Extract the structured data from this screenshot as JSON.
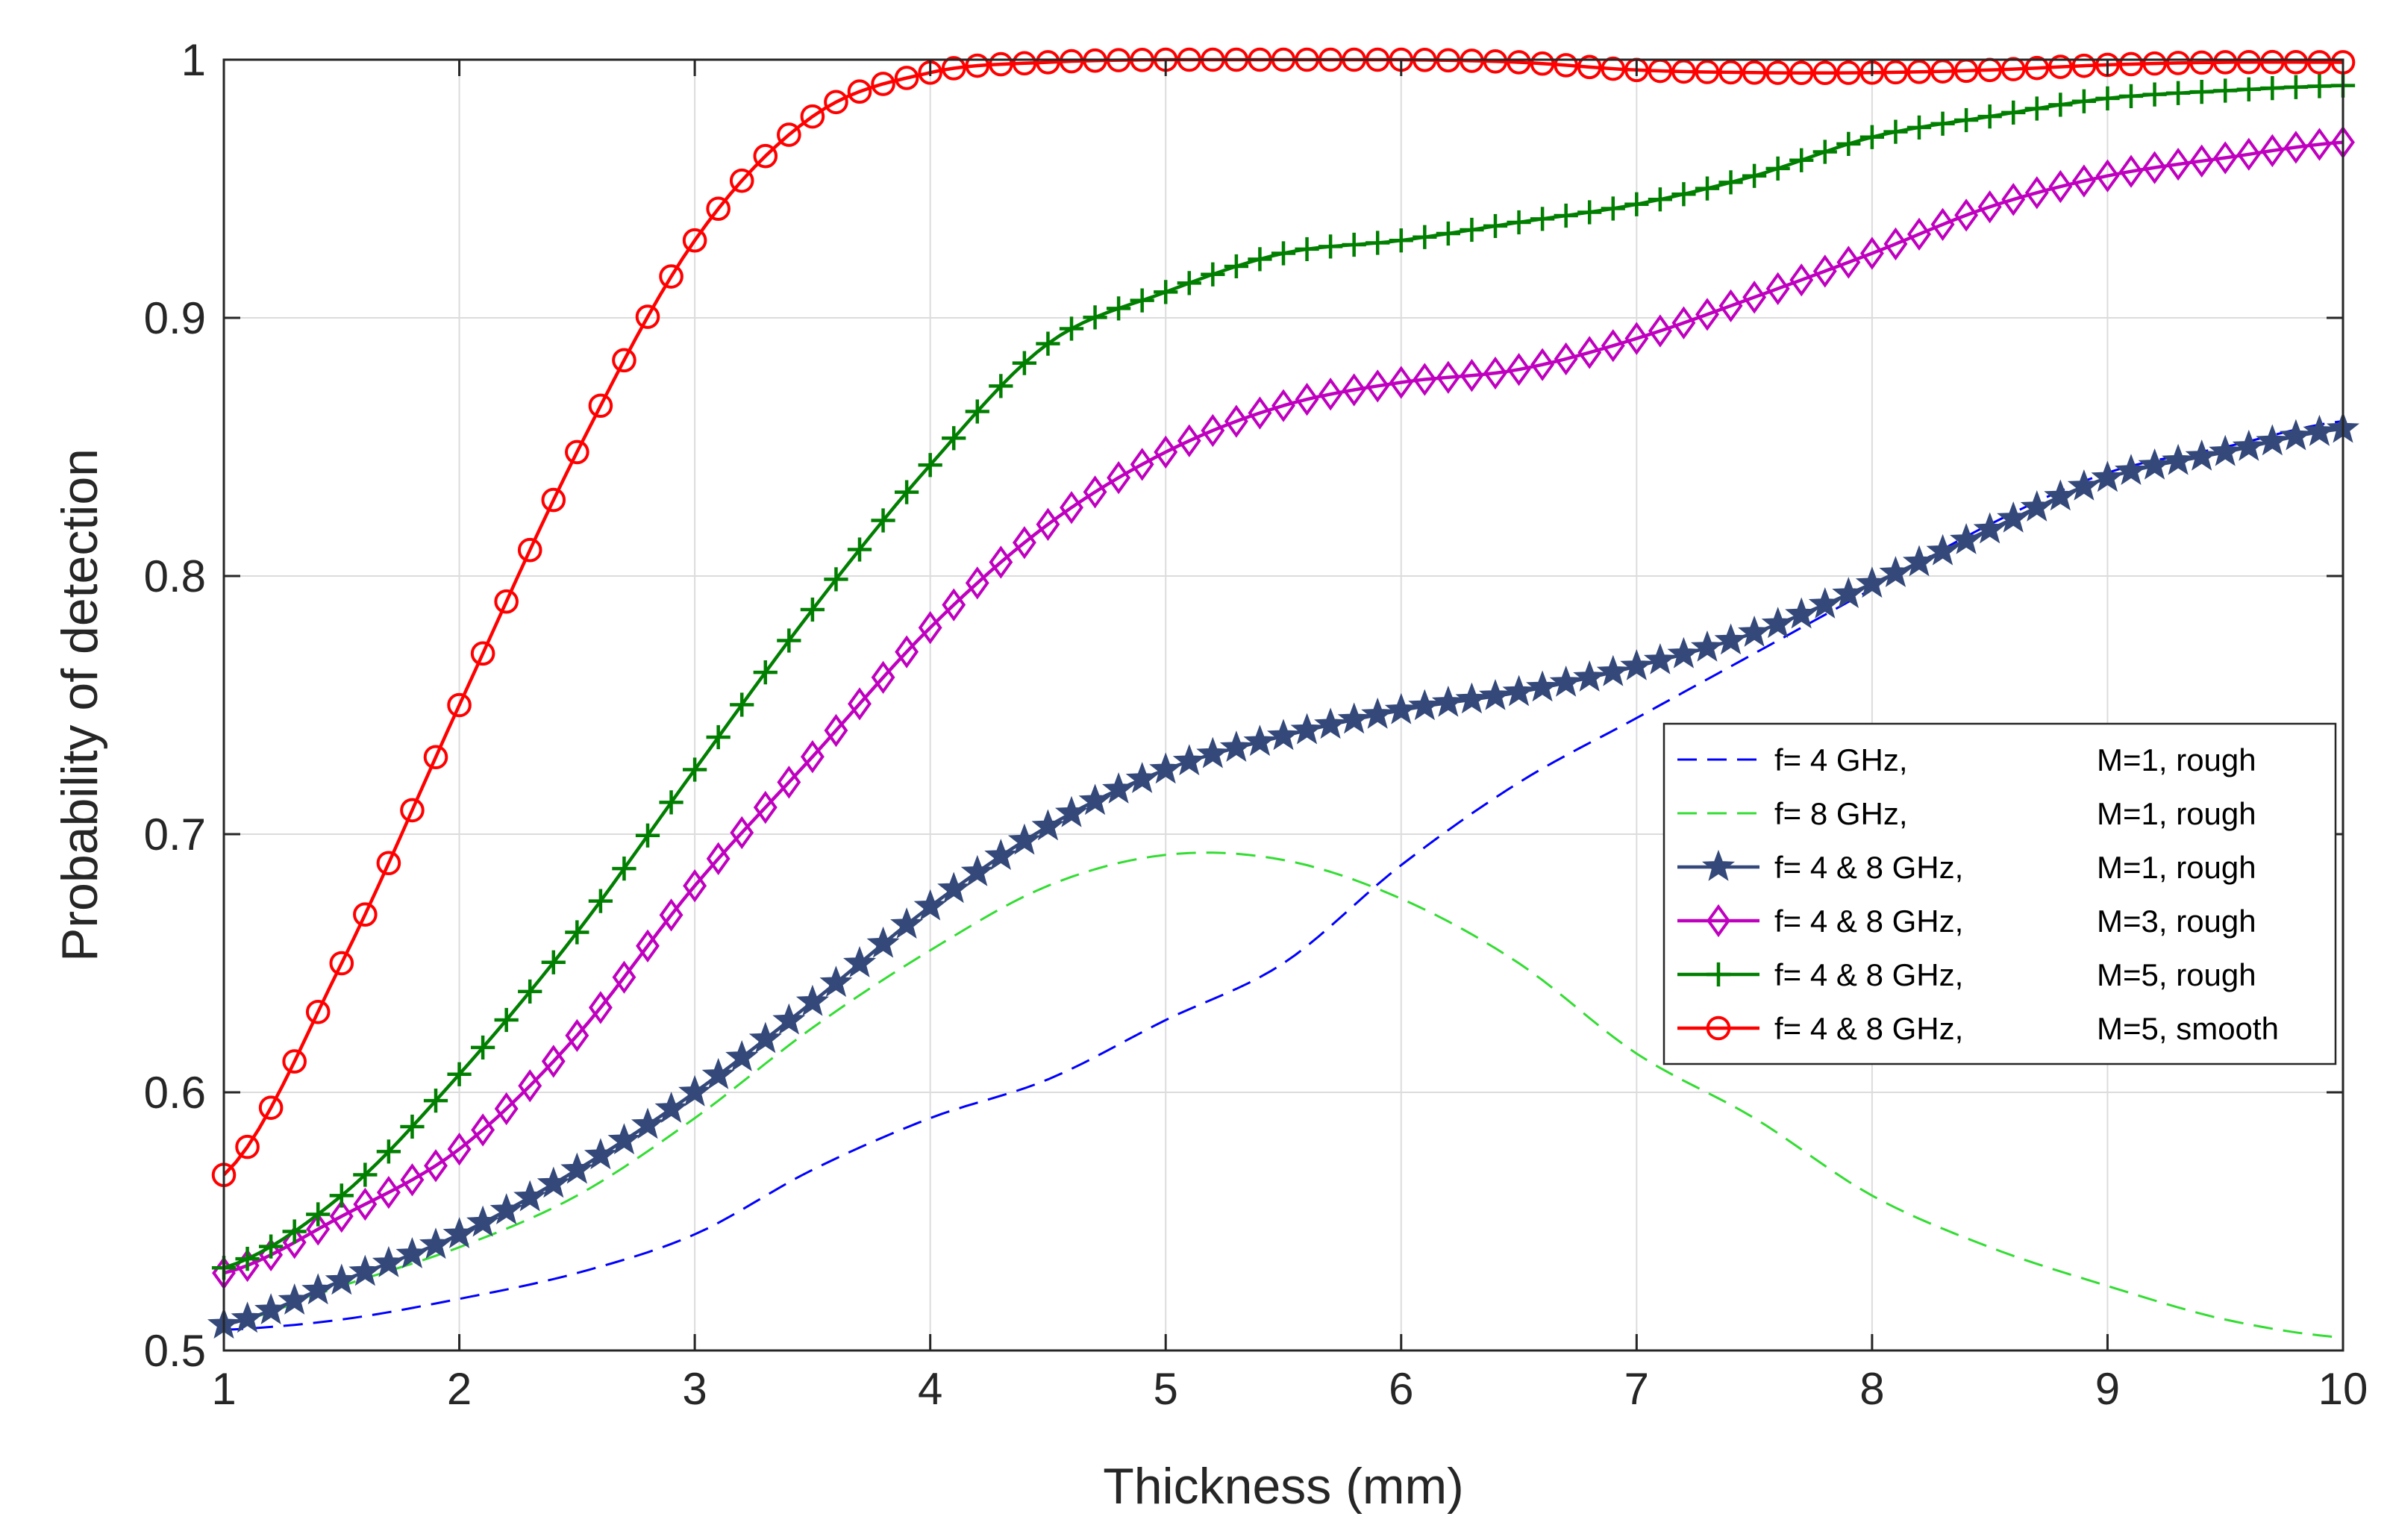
{
  "chart_data": {
    "type": "line",
    "title": "",
    "xlabel": "Thickness (mm)",
    "ylabel": "Probability of detection",
    "xlim": [
      1,
      10
    ],
    "ylim": [
      0.5,
      1
    ],
    "xticks": [
      "1",
      "2",
      "3",
      "4",
      "5",
      "6",
      "7",
      "8",
      "9",
      "10"
    ],
    "yticks": [
      "0.5",
      "0.6",
      "0.7",
      "0.8",
      "0.9",
      "1"
    ],
    "grid": true,
    "legend_position": "lower-right",
    "series": [
      {
        "name": "f= 4 GHz, M=1, rough",
        "legend_freq": "f= 4 GHz,",
        "legend_cond": "M=1, rough",
        "color": "#0000ff",
        "style": "dashed",
        "marker": "none",
        "x": [
          1,
          1.5,
          2,
          2.5,
          3,
          3.5,
          4,
          4.5,
          5,
          5.5,
          6,
          6.5,
          7,
          7.5,
          8,
          8.5,
          9,
          9.5,
          10
        ],
        "y": [
          0.508,
          0.512,
          0.52,
          0.53,
          0.545,
          0.57,
          0.59,
          0.605,
          0.628,
          0.65,
          0.688,
          0.72,
          0.745,
          0.77,
          0.795,
          0.82,
          0.84,
          0.85,
          0.86
        ]
      },
      {
        "name": "f= 8 GHz, M=1, rough",
        "legend_freq": "f= 8 GHz,",
        "legend_cond": "M=1, rough",
        "color": "#33dd33",
        "style": "dashed",
        "marker": "none",
        "x": [
          1,
          1.5,
          2,
          2.5,
          3,
          3.5,
          4,
          4.5,
          5,
          5.5,
          6,
          6.5,
          7,
          7.5,
          8,
          8.5,
          9,
          9.5,
          10
        ],
        "y": [
          0.51,
          0.525,
          0.54,
          0.56,
          0.59,
          0.625,
          0.655,
          0.68,
          0.692,
          0.69,
          0.675,
          0.65,
          0.615,
          0.59,
          0.56,
          0.54,
          0.525,
          0.512,
          0.505
        ]
      },
      {
        "name": "f= 4 & 8 GHz, M=1, rough",
        "legend_freq": "f= 4 & 8 GHz,",
        "legend_cond": "M=1, rough",
        "color": "#34497a",
        "style": "solid",
        "marker": "star",
        "x": [
          1,
          1.5,
          2,
          2.5,
          3,
          3.5,
          4,
          4.5,
          5,
          5.5,
          6,
          6.5,
          7,
          7.5,
          8,
          8.5,
          9,
          9.5,
          10
        ],
        "y": [
          0.51,
          0.527,
          0.545,
          0.57,
          0.6,
          0.635,
          0.672,
          0.703,
          0.725,
          0.738,
          0.748,
          0.755,
          0.765,
          0.778,
          0.797,
          0.818,
          0.838,
          0.848,
          0.857
        ]
      },
      {
        "name": "f= 4 & 8 GHz, M=3, rough",
        "legend_freq": "f= 4 & 8 GHz,",
        "legend_cond": "M=3, rough",
        "color": "#bf00bf",
        "style": "solid",
        "marker": "diamond",
        "x": [
          1,
          1.5,
          2,
          2.5,
          3,
          3.5,
          4,
          4.5,
          5,
          5.5,
          6,
          6.5,
          7,
          7.5,
          8,
          8.5,
          9,
          9.5,
          10
        ],
        "y": [
          0.53,
          0.552,
          0.578,
          0.622,
          0.68,
          0.73,
          0.78,
          0.82,
          0.848,
          0.866,
          0.875,
          0.88,
          0.892,
          0.908,
          0.925,
          0.943,
          0.955,
          0.962,
          0.968
        ]
      },
      {
        "name": "f= 4 & 8 GHz, M=5, rough",
        "legend_freq": "f= 4 & 8 GHz,",
        "legend_cond": "M=5, rough",
        "color": "#007f00",
        "style": "solid",
        "marker": "plus",
        "x": [
          1,
          1.5,
          2,
          2.5,
          3,
          3.5,
          4,
          4.5,
          5,
          5.5,
          6,
          6.5,
          7,
          7.5,
          8,
          8.5,
          9,
          9.5,
          10
        ],
        "y": [
          0.532,
          0.56,
          0.607,
          0.662,
          0.725,
          0.787,
          0.843,
          0.89,
          0.91,
          0.925,
          0.93,
          0.937,
          0.944,
          0.955,
          0.97,
          0.978,
          0.985,
          0.988,
          0.99
        ]
      },
      {
        "name": "f= 4 & 8 GHz, M=5, smooth",
        "legend_freq": "f= 4 & 8 GHz,",
        "legend_cond": "M=5, smooth",
        "color": "#ff0000",
        "style": "solid",
        "marker": "circle",
        "x": [
          1,
          1.5,
          2,
          2.5,
          3,
          3.5,
          4,
          4.5,
          5,
          5.5,
          6,
          6.5,
          7,
          7.5,
          8,
          8.5,
          9,
          9.5,
          10
        ],
        "y": [
          0.568,
          0.65,
          0.75,
          0.848,
          0.93,
          0.978,
          0.995,
          0.999,
          1.0,
          1.0,
          1.0,
          0.999,
          0.996,
          0.995,
          0.995,
          0.996,
          0.998,
          0.999,
          0.999
        ]
      }
    ]
  }
}
